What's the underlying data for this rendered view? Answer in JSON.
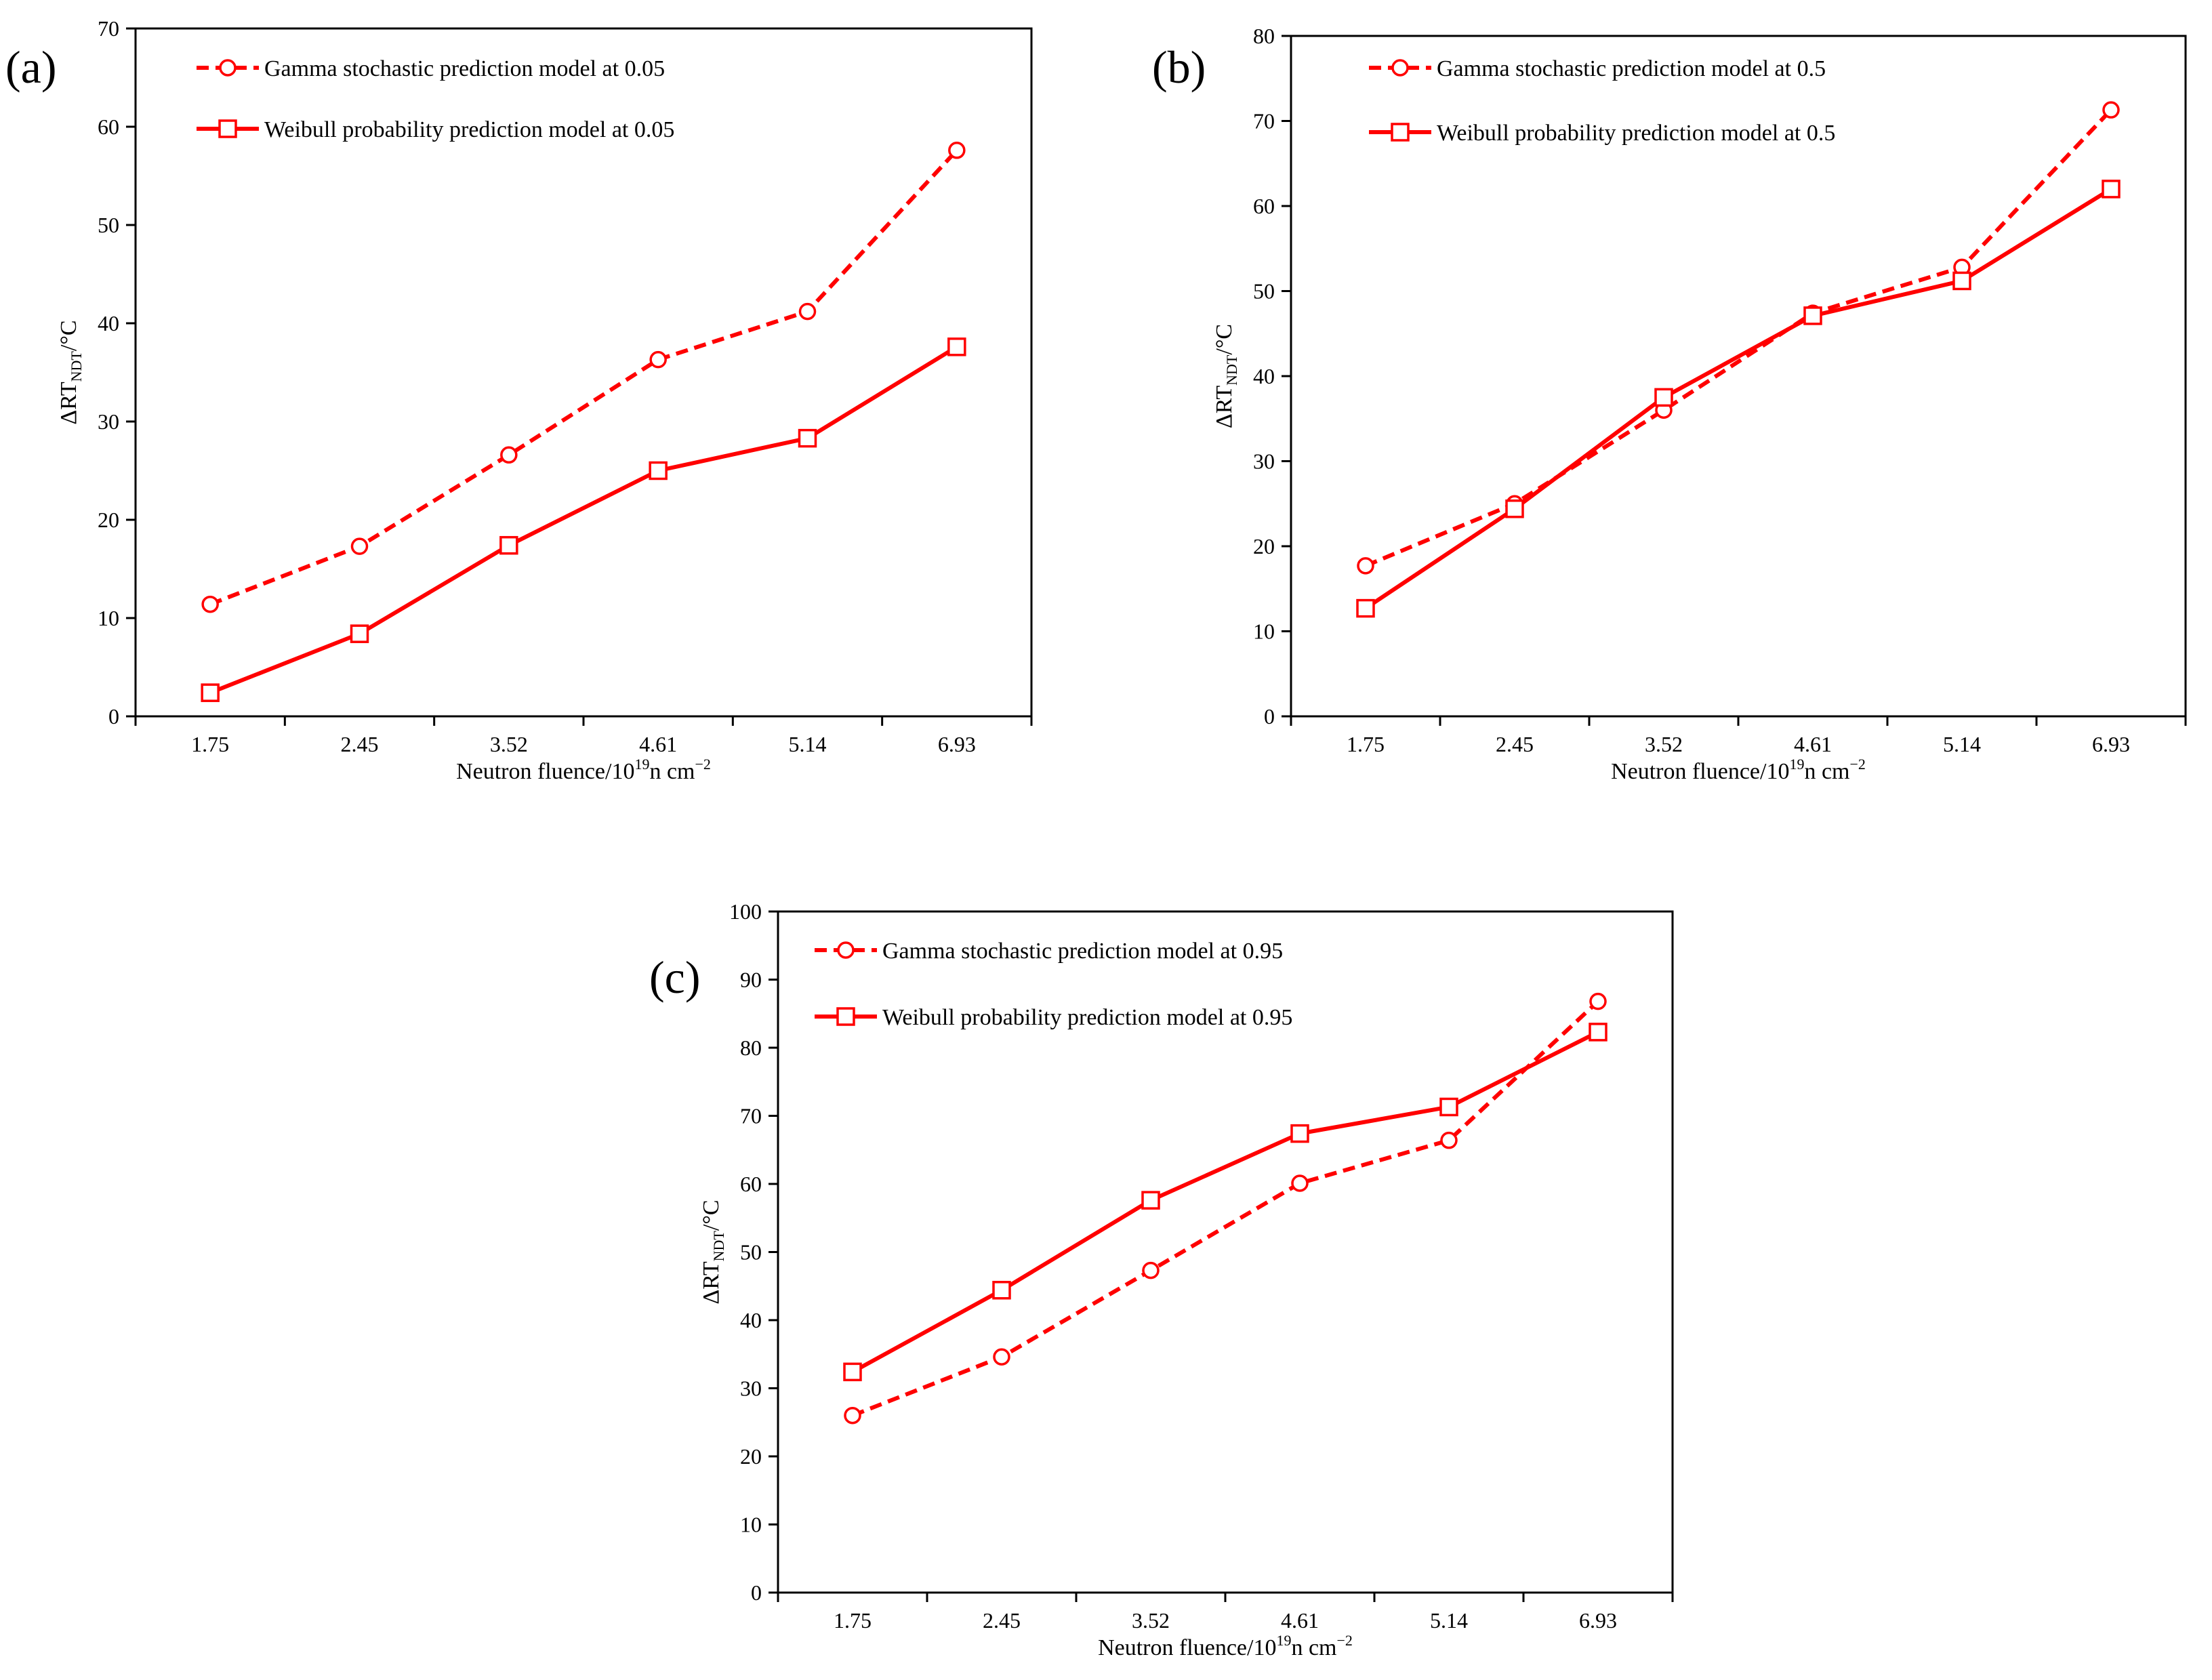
{
  "chart_data": [
    {
      "type": "line",
      "panel": "(a)",
      "categories": [
        "1.75",
        "2.45",
        "3.52",
        "4.61",
        "5.14",
        "6.93"
      ],
      "ylim": [
        0,
        70
      ],
      "yticks": [
        0,
        10,
        20,
        30,
        40,
        50,
        60,
        70
      ],
      "xlabel": "Neutron fluence/10",
      "xlabel_sup": "19",
      "xlabel_tail": "n cm",
      "xlabel_tail_sup": "−2",
      "ylabel": "ΔRT",
      "ylabel_sub": "NDT",
      "ylabel_tail": "/°C",
      "legend_position": "top-left",
      "series": [
        {
          "name": "Gamma stochastic prediction model at 0.05",
          "style": "dashed",
          "marker": "circle",
          "color": "#ff0000",
          "values": [
            11.4,
            17.3,
            26.6,
            36.3,
            41.2,
            57.6
          ]
        },
        {
          "name": "Weibull probability prediction model at 0.05",
          "style": "solid",
          "marker": "square",
          "color": "#ff0000",
          "values": [
            2.4,
            8.4,
            17.4,
            25.0,
            28.3,
            37.6
          ]
        }
      ]
    },
    {
      "type": "line",
      "panel": "(b)",
      "categories": [
        "1.75",
        "2.45",
        "3.52",
        "4.61",
        "5.14",
        "6.93"
      ],
      "ylim": [
        0,
        80
      ],
      "yticks": [
        0,
        10,
        20,
        30,
        40,
        50,
        60,
        70,
        80
      ],
      "xlabel": "Neutron fluence/10",
      "xlabel_sup": "19",
      "xlabel_tail": "n cm",
      "xlabel_tail_sup": "−2",
      "ylabel": "ΔRT",
      "ylabel_sub": "NDT",
      "ylabel_tail": "/°C",
      "legend_position": "top-left",
      "series": [
        {
          "name": "Gamma stochastic prediction model at 0.5",
          "style": "dashed",
          "marker": "circle",
          "color": "#ff0000",
          "values": [
            17.7,
            25.0,
            36.0,
            47.4,
            52.8,
            71.3
          ]
        },
        {
          "name": "Weibull probability prediction model at 0.5",
          "style": "solid",
          "marker": "square",
          "color": "#ff0000",
          "values": [
            12.7,
            24.4,
            37.5,
            47.1,
            51.2,
            62.0
          ]
        }
      ]
    },
    {
      "type": "line",
      "panel": "(c)",
      "categories": [
        "1.75",
        "2.45",
        "3.52",
        "4.61",
        "5.14",
        "6.93"
      ],
      "ylim": [
        0,
        100
      ],
      "yticks": [
        0,
        10,
        20,
        30,
        40,
        50,
        60,
        70,
        80,
        90,
        100
      ],
      "xlabel": "Neutron fluence/10",
      "xlabel_sup": "19",
      "xlabel_tail": "n cm",
      "xlabel_tail_sup": "−2",
      "ylabel": "ΔRT",
      "ylabel_sub": "NDT",
      "ylabel_tail": "/°C",
      "legend_position": "top-left",
      "series": [
        {
          "name": "Gamma stochastic prediction model at 0.95",
          "style": "dashed",
          "marker": "circle",
          "color": "#ff0000",
          "values": [
            26.0,
            34.6,
            47.3,
            60.1,
            66.4,
            86.8
          ]
        },
        {
          "name": "Weibull  probability prediction model at 0.95",
          "style": "solid",
          "marker": "square",
          "color": "#ff0000",
          "values": [
            32.4,
            44.4,
            57.6,
            67.4,
            71.3,
            82.3
          ]
        }
      ]
    }
  ]
}
